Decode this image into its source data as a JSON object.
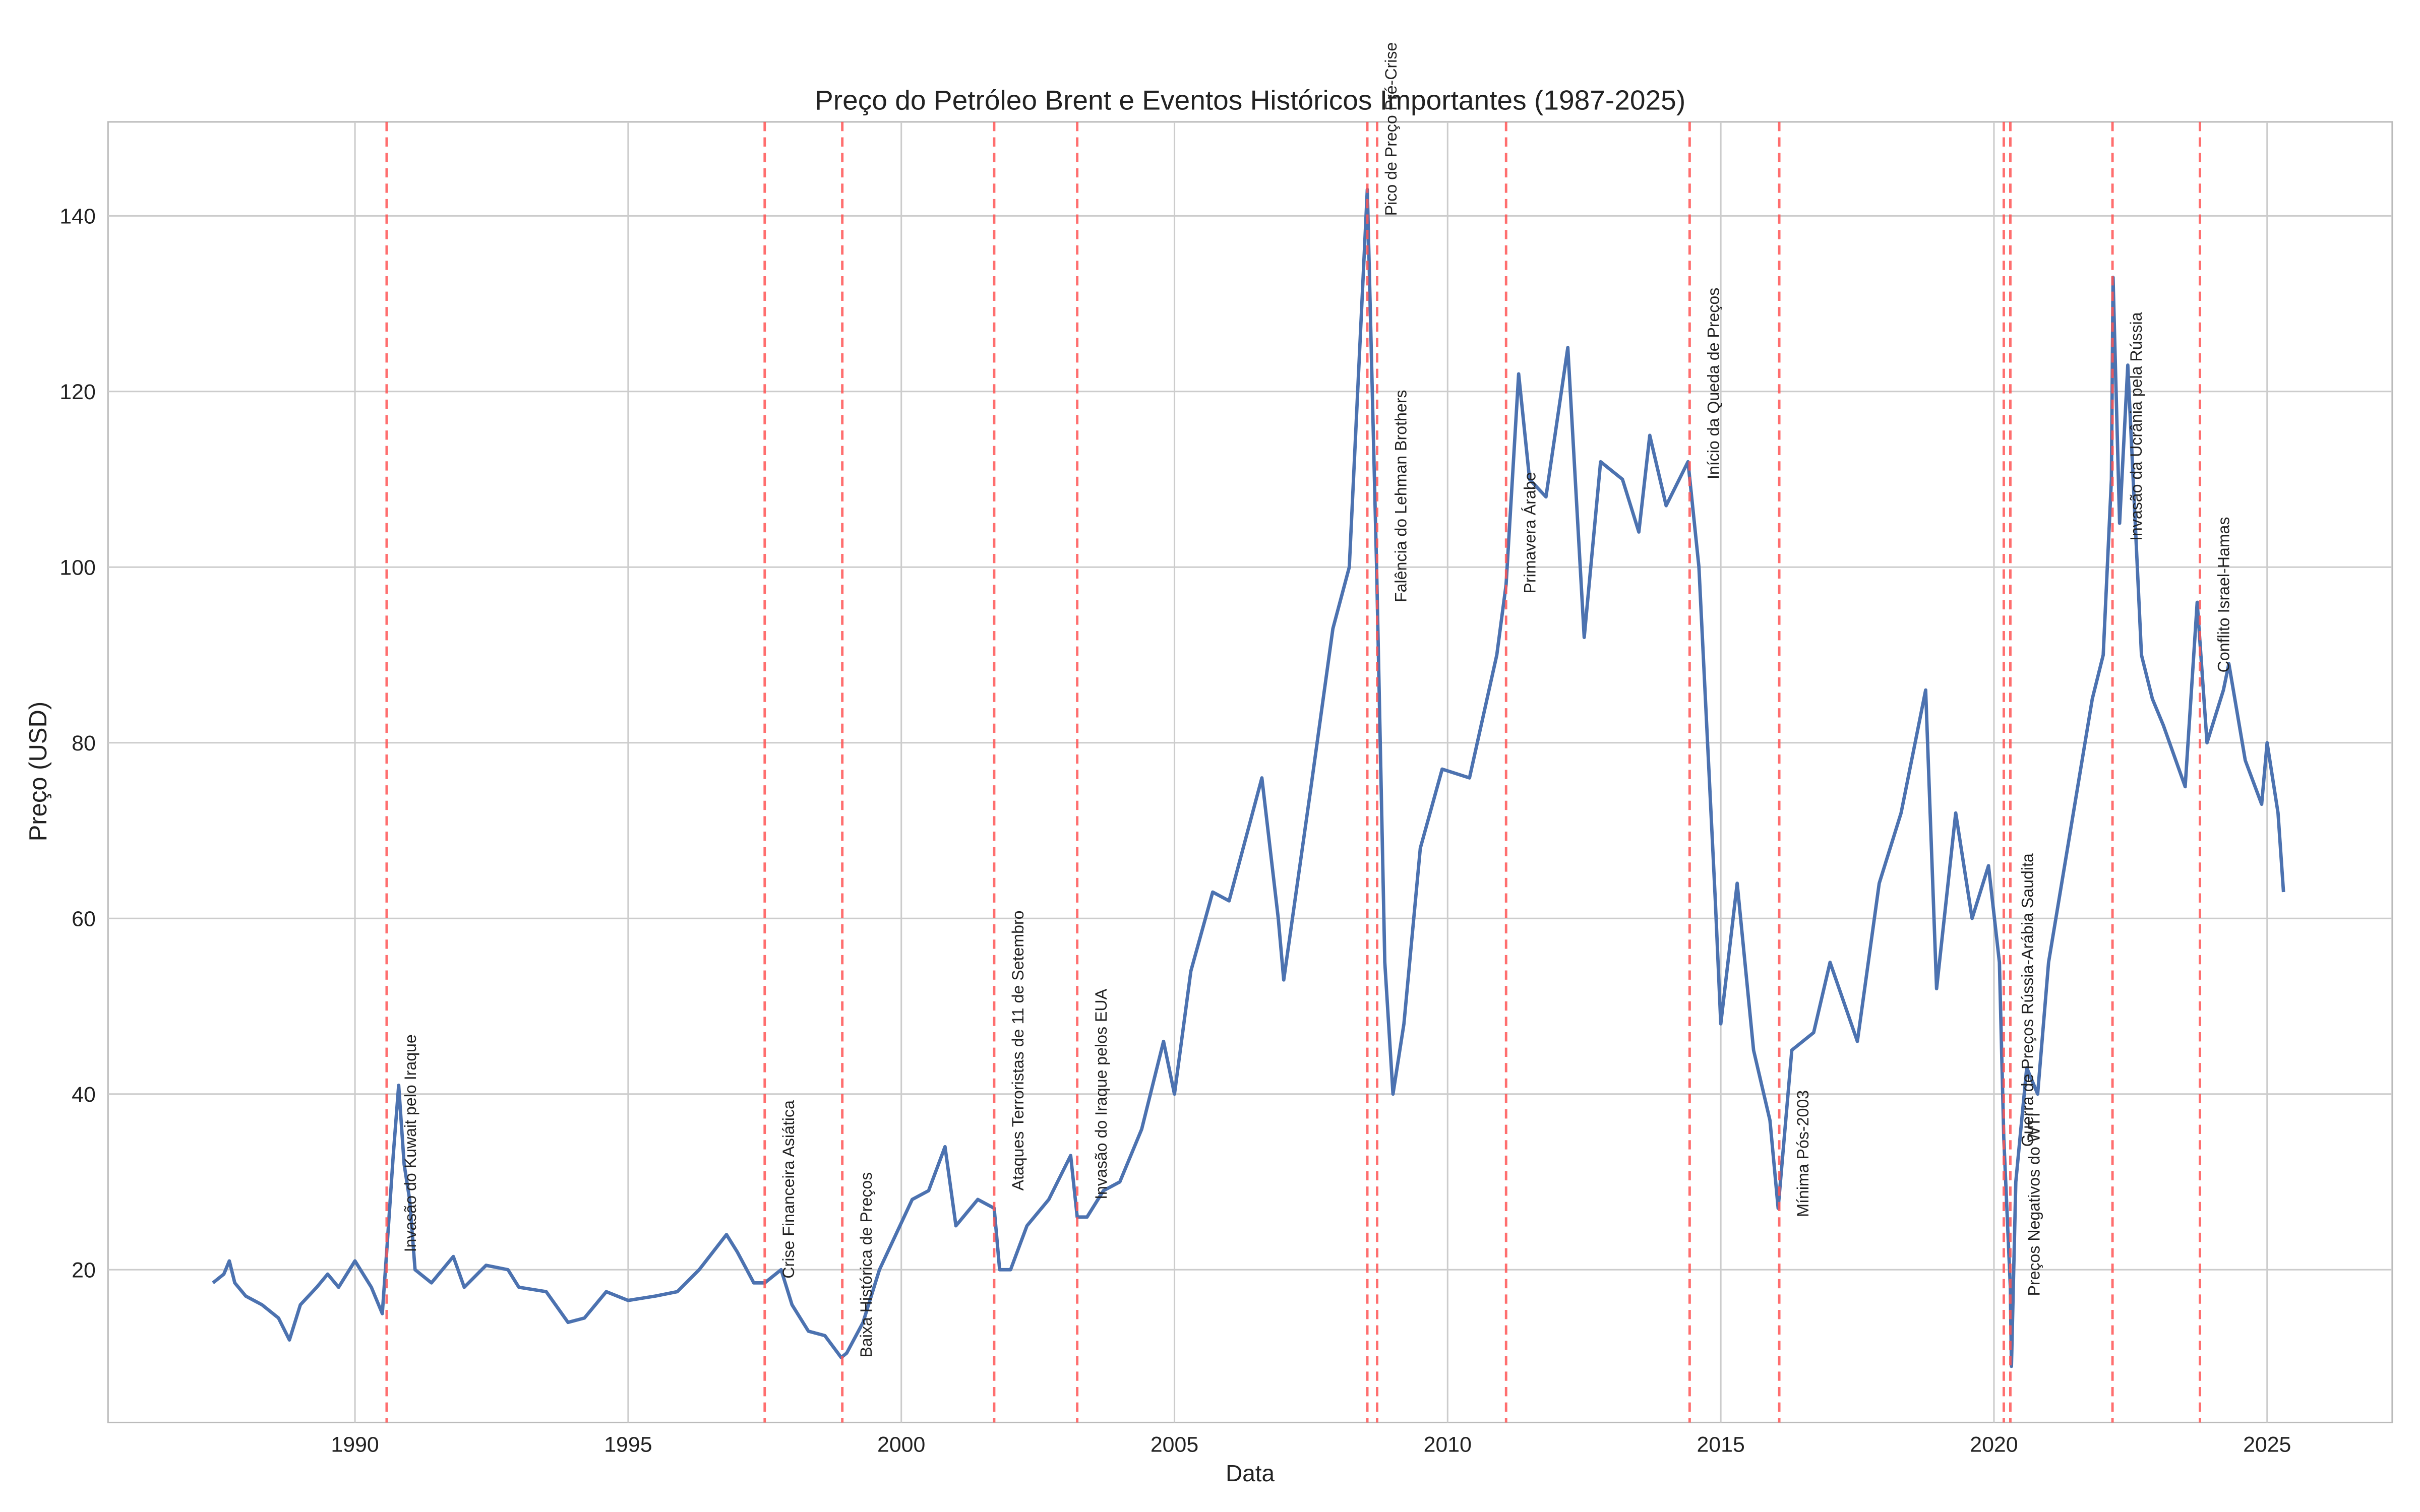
{
  "chart_data": {
    "type": "line",
    "title": "Preço do Petróleo Brent e Eventos Históricos Importantes (1987-2025)",
    "x_label": "Data",
    "y_label": "Preço (USD)",
    "xlim": [
      1985.48,
      2027.29
    ],
    "ylim": [
      2.6,
      150.7
    ],
    "xticks": [
      1990,
      1995,
      2000,
      2005,
      2010,
      2015,
      2020,
      2025
    ],
    "yticks": [
      20,
      40,
      60,
      80,
      100,
      120,
      140
    ],
    "grid": true,
    "series": [
      {
        "name": "Brent",
        "color": "#4c72b0",
        "x": [
          1987.4,
          1987.6,
          1987.7,
          1987.8,
          1988.0,
          1988.3,
          1988.6,
          1988.8,
          1989.0,
          1989.3,
          1989.5,
          1989.7,
          1990.0,
          1990.3,
          1990.5,
          1990.58,
          1990.7,
          1990.8,
          1990.9,
          1991.0,
          1991.1,
          1991.4,
          1991.8,
          1992.0,
          1992.4,
          1992.8,
          1993.0,
          1993.5,
          1993.9,
          1994.2,
          1994.6,
          1995.0,
          1995.5,
          1995.9,
          1996.3,
          1996.8,
          1997.0,
          1997.3,
          1997.5,
          1997.8,
          1998.0,
          1998.3,
          1998.6,
          1998.9,
          1999.0,
          1999.3,
          1999.6,
          1999.9,
          2000.2,
          2000.5,
          2000.8,
          2001.0,
          2001.4,
          2001.7,
          2001.8,
          2002.0,
          2002.3,
          2002.7,
          2003.1,
          2003.22,
          2003.4,
          2003.7,
          2004.0,
          2004.4,
          2004.8,
          2005.0,
          2005.3,
          2005.7,
          2006.0,
          2006.6,
          2006.9,
          2007.0,
          2007.5,
          2007.9,
          2008.2,
          2008.53,
          2008.7,
          2008.85,
          2009.0,
          2009.2,
          2009.5,
          2009.9,
          2010.4,
          2010.9,
          2011.07,
          2011.3,
          2011.5,
          2011.8,
          2012.2,
          2012.5,
          2012.8,
          2013.2,
          2013.5,
          2013.7,
          2014.0,
          2014.4,
          2014.6,
          2014.9,
          2015.0,
          2015.3,
          2015.6,
          2015.9,
          2016.05,
          2016.3,
          2016.7,
          2017.0,
          2017.5,
          2017.9,
          2018.3,
          2018.75,
          2018.95,
          2019.3,
          2019.6,
          2019.9,
          2020.1,
          2020.18,
          2020.3,
          2020.32,
          2020.4,
          2020.6,
          2020.8,
          2021.0,
          2021.4,
          2021.8,
          2022.0,
          2022.15,
          2022.18,
          2022.3,
          2022.45,
          2022.7,
          2022.9,
          2023.1,
          2023.5,
          2023.72,
          2023.9,
          2024.2,
          2024.3,
          2024.6,
          2024.9,
          2025.0,
          2025.2,
          2025.3
        ],
        "values": [
          18.5,
          19.5,
          21,
          18.5,
          17,
          16,
          14.5,
          12,
          16,
          18,
          19.5,
          18,
          21,
          18,
          15,
          22,
          33,
          41,
          32,
          28,
          20,
          18.5,
          21.5,
          18,
          20.5,
          20,
          18,
          17.5,
          14,
          14.5,
          17.5,
          16.5,
          17,
          17.5,
          20,
          24,
          22,
          18.5,
          18.5,
          20,
          16,
          13,
          12.5,
          10,
          10.5,
          14,
          20,
          24,
          28,
          29,
          34,
          25,
          28,
          27,
          20,
          20,
          25,
          28,
          33,
          26,
          26,
          29,
          30,
          36,
          46,
          40,
          54,
          63,
          62,
          76,
          60,
          53,
          75,
          93,
          100,
          143,
          100,
          55,
          40,
          48,
          68,
          77,
          76,
          90,
          98,
          122,
          110,
          108,
          125,
          92,
          112,
          110,
          104,
          115,
          107,
          112,
          100,
          62,
          48,
          64,
          45,
          37,
          27,
          45,
          47,
          55,
          46,
          64,
          72,
          86,
          52,
          72,
          60,
          66,
          55,
          35,
          18,
          9,
          30,
          43,
          40,
          55,
          70,
          85,
          90,
          110,
          133,
          105,
          123,
          90,
          85,
          82,
          75,
          96,
          80,
          86,
          89,
          78,
          73,
          80,
          72,
          63
        ]
      }
    ],
    "events": [
      {
        "label": "Invasão do Kuwait pelo Iraque",
        "x": 1990.58,
        "y": 22
      },
      {
        "label": "Crise Financeira Asiática",
        "x": 1997.5,
        "y": 19
      },
      {
        "label": "Baixa Histórica de Preços",
        "x": 1998.92,
        "y": 10
      },
      {
        "label": "Ataques Terroristas de 11 de Setembro",
        "x": 2001.7,
        "y": 29
      },
      {
        "label": "Invasão do Iraque pelos EUA",
        "x": 2003.22,
        "y": 28
      },
      {
        "label": "Pico de Preço Pré-Crise",
        "x": 2008.53,
        "y": 140
      },
      {
        "label": "Falência do Lehman Brothers",
        "x": 2008.71,
        "y": 96
      },
      {
        "label": "Primavera Árabe",
        "x": 2011.07,
        "y": 97
      },
      {
        "label": "Início da Queda de Preços",
        "x": 2014.43,
        "y": 110
      },
      {
        "label": "Mínima Pós-2003",
        "x": 2016.07,
        "y": 26
      },
      {
        "label": "Guerra de Preços Rússia-Arábia Saudita",
        "x": 2020.18,
        "y": 34
      },
      {
        "label": "Preços Negativos do WTI",
        "x": 2020.3,
        "y": 17
      },
      {
        "label": "Invasão da Ucrânia pela Rússia",
        "x": 2022.17,
        "y": 103
      },
      {
        "label": "Conflito Israel-Hamas",
        "x": 2023.77,
        "y": 88
      }
    ],
    "event_color": "#ff5555"
  }
}
